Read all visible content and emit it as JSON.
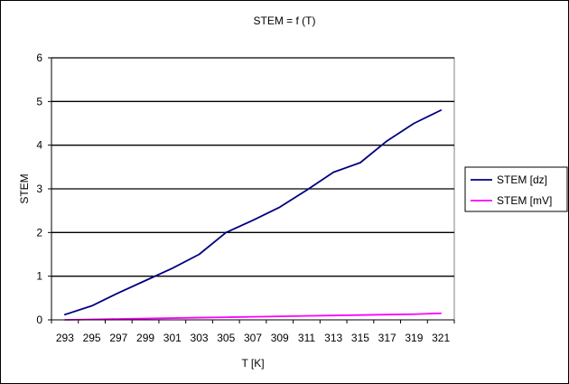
{
  "chart_data": {
    "type": "line",
    "title": "STEM = f (T)",
    "xlabel": "T [K]",
    "ylabel": "STEM",
    "x": [
      293,
      295,
      297,
      299,
      301,
      303,
      305,
      307,
      309,
      311,
      313,
      315,
      317,
      319,
      321
    ],
    "x_tick_labels": [
      "293",
      "295",
      "297",
      "299",
      "301",
      "303",
      "305",
      "307",
      "309",
      "311",
      "313",
      "315",
      "317",
      "319",
      "321"
    ],
    "ylim": [
      0,
      6
    ],
    "y_ticks": [
      0,
      1,
      2,
      3,
      4,
      5,
      6
    ],
    "y_tick_labels": [
      "0",
      "1",
      "2",
      "3",
      "4",
      "5",
      "6"
    ],
    "grid": "horizontal",
    "legend_position": "right",
    "series": [
      {
        "name": "STEM [dz]",
        "color": "#000080",
        "values": [
          0.12,
          0.32,
          0.62,
          0.9,
          1.18,
          1.5,
          2.0,
          2.28,
          2.58,
          2.97,
          3.38,
          3.6,
          4.1,
          4.5,
          4.8
        ]
      },
      {
        "name": "STEM [mV]",
        "color": "#ff00ff",
        "values": [
          0.0,
          0.01,
          0.02,
          0.03,
          0.04,
          0.05,
          0.06,
          0.07,
          0.08,
          0.09,
          0.1,
          0.11,
          0.12,
          0.13,
          0.15
        ]
      }
    ]
  }
}
